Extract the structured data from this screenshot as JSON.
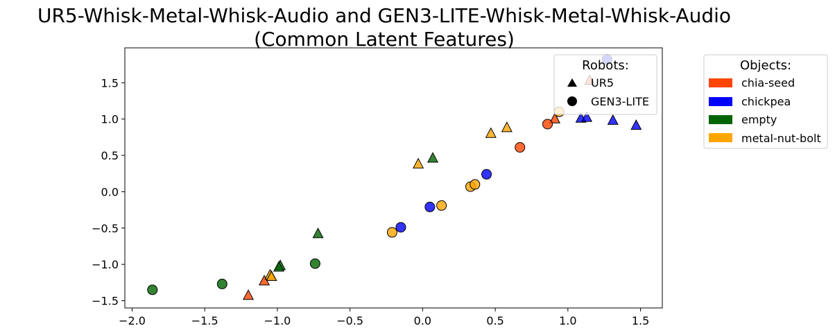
{
  "chart_data": {
    "type": "scatter",
    "title_line1": "UR5-Whisk-Metal-Whisk-Audio and GEN3-LITE-Whisk-Metal-Whisk-Audio",
    "title_line2": "(Common Latent Features)",
    "xlabel": "",
    "ylabel": "",
    "xlim": [
      -2.05,
      1.65
    ],
    "ylim": [
      -1.6,
      1.98
    ],
    "xticks": [
      -2.0,
      -1.5,
      -1.0,
      -0.5,
      0.0,
      0.5,
      1.0,
      1.5
    ],
    "xtick_labels": [
      "−2.0",
      "−1.5",
      "−1.0",
      "−0.5",
      "0.0",
      "0.5",
      "1.0",
      "1.5"
    ],
    "yticks": [
      -1.5,
      -1.0,
      -0.5,
      0.0,
      0.5,
      1.0,
      1.5
    ],
    "ytick_labels": [
      "−1.5",
      "−1.0",
      "−0.5",
      "0.0",
      "0.5",
      "1.0",
      "1.5"
    ],
    "grid": false,
    "robots_legend": {
      "title": "Robots:",
      "placement": "top-right inside axes",
      "entries": [
        {
          "label": "UR5",
          "marker": "triangle"
        },
        {
          "label": "GEN3-LITE",
          "marker": "circle"
        }
      ]
    },
    "objects_legend": {
      "title": "Objects:",
      "placement": "outside right",
      "entries": [
        {
          "label": "chia-seed",
          "color": "#ff4500"
        },
        {
          "label": "chickpea",
          "color": "#0000ff"
        },
        {
          "label": "empty",
          "color": "#006400"
        },
        {
          "label": "metal-nut-bolt",
          "color": "#ffa500"
        }
      ]
    },
    "series": [
      {
        "object": "chia-seed",
        "robot": "UR5",
        "color": "#ff4500",
        "points": [
          [
            -1.2,
            -1.43
          ],
          [
            -1.09,
            -1.23
          ],
          [
            0.91,
            1.0
          ],
          [
            1.15,
            1.53
          ]
        ]
      },
      {
        "object": "chia-seed",
        "robot": "GEN3-LITE",
        "color": "#ff4500",
        "points": [
          [
            0.67,
            0.61
          ],
          [
            0.86,
            0.93
          ]
        ]
      },
      {
        "object": "chickpea",
        "robot": "UR5",
        "color": "#0000ff",
        "points": [
          [
            1.09,
            1.01
          ],
          [
            1.13,
            1.02
          ],
          [
            1.31,
            0.98
          ],
          [
            1.47,
            0.91
          ]
        ]
      },
      {
        "object": "chickpea",
        "robot": "GEN3-LITE",
        "color": "#0000ff",
        "points": [
          [
            -0.15,
            -0.49
          ],
          [
            0.05,
            -0.21
          ],
          [
            0.44,
            0.24
          ],
          [
            1.27,
            1.82
          ]
        ]
      },
      {
        "object": "empty",
        "robot": "UR5",
        "color": "#006400",
        "points": [
          [
            -0.98,
            -1.02
          ],
          [
            -0.99,
            -1.04
          ],
          [
            -0.72,
            -0.58
          ],
          [
            0.07,
            0.46
          ]
        ]
      },
      {
        "object": "empty",
        "robot": "GEN3-LITE",
        "color": "#006400",
        "points": [
          [
            -1.86,
            -1.35
          ],
          [
            -1.38,
            -1.27
          ],
          [
            -0.74,
            -0.99
          ]
        ]
      },
      {
        "object": "metal-nut-bolt",
        "robot": "UR5",
        "color": "#ffa500",
        "points": [
          [
            -1.05,
            -1.15
          ],
          [
            -1.04,
            -1.17
          ],
          [
            -0.03,
            0.38
          ],
          [
            0.47,
            0.8
          ],
          [
            0.58,
            0.88
          ]
        ]
      },
      {
        "object": "metal-nut-bolt",
        "robot": "GEN3-LITE",
        "color": "#ffa500",
        "points": [
          [
            -0.21,
            -0.56
          ],
          [
            0.13,
            -0.19
          ],
          [
            0.33,
            0.07
          ],
          [
            0.36,
            0.1
          ],
          [
            0.94,
            1.1
          ]
        ]
      }
    ]
  }
}
